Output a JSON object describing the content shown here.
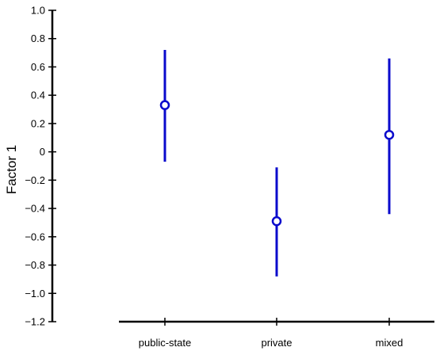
{
  "chart_data": {
    "type": "scatter",
    "categories": [
      "public-state",
      "private",
      "mixed"
    ],
    "series": [
      {
        "estimate": [
          0.33,
          -0.49,
          0.12
        ],
        "lower": [
          -0.07,
          -0.88,
          -0.44
        ],
        "upper": [
          0.72,
          -0.11,
          0.66
        ]
      }
    ],
    "xlabel": "",
    "ylabel": "Factor 1",
    "ylim": [
      -1.2,
      1.0
    ],
    "yticks": [
      1.0,
      0.8,
      0.6,
      0.4,
      0.2,
      0,
      -0.2,
      -0.4,
      -0.6,
      -0.8,
      -1.0,
      -1.2
    ],
    "ytick_labels": [
      "1.0",
      "0.8",
      "0.6",
      "0.4",
      "0.2",
      "0",
      "−0.2",
      "−0.4",
      "−0.6",
      "−0.8",
      "−1.0",
      "−1.2"
    ],
    "grid": false,
    "colors": {
      "series": "#0a0acc",
      "axis": "#000000"
    }
  }
}
